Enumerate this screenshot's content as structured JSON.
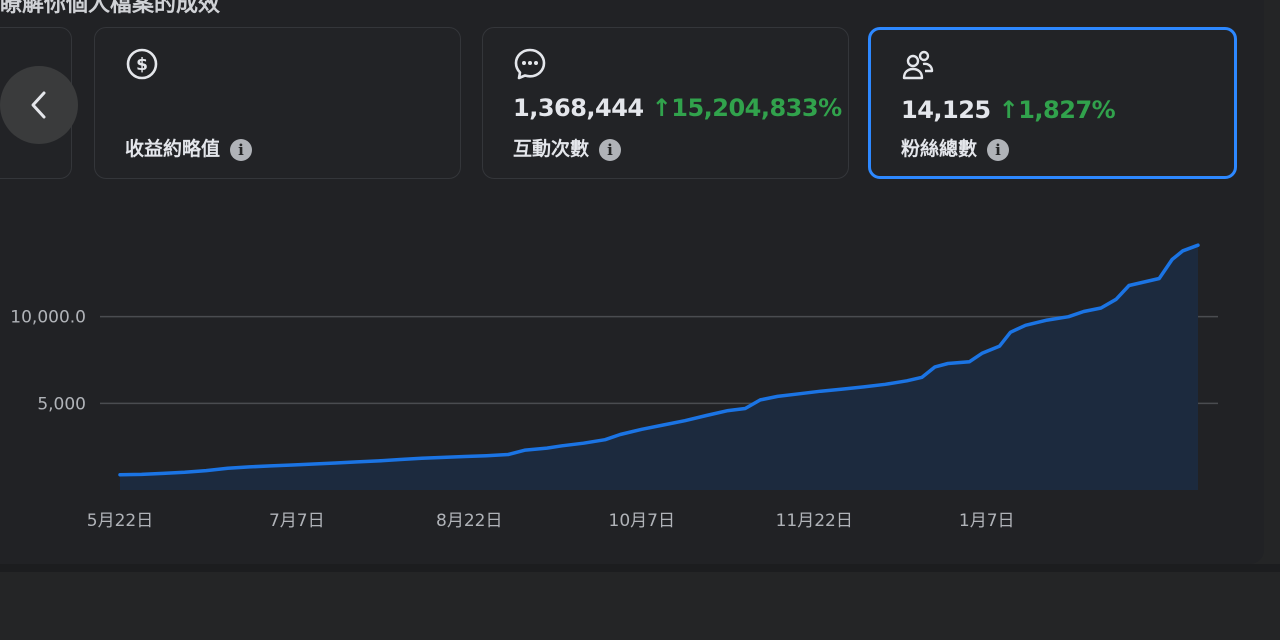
{
  "header": {
    "title": "瞭解你個人檔案的成效"
  },
  "nav": {
    "prev_icon": "chevron-left-icon"
  },
  "cards": [
    {
      "icon": "dollar-circle-icon",
      "label": "收益約略值"
    },
    {
      "icon": "chat-bubble-icon",
      "label": "互動次數",
      "value": "1,368,444",
      "delta": "↑15,204,833%"
    },
    {
      "icon": "people-icon",
      "label": "粉絲總數",
      "value": "14,125",
      "delta": "↑1,827%",
      "selected": true
    }
  ],
  "colors": {
    "accent": "#2d88ff",
    "line": "#1b74e4",
    "positive": "#31a24c",
    "area": "#1c2a3e"
  },
  "chart_data": {
    "type": "area",
    "series": [
      {
        "values": [
          [
            0,
            880
          ],
          [
            10,
            900
          ],
          [
            20,
            960
          ],
          [
            30,
            1020
          ],
          [
            40,
            1120
          ],
          [
            50,
            1250
          ],
          [
            60,
            1330
          ],
          [
            70,
            1390
          ],
          [
            80,
            1440
          ],
          [
            90,
            1500
          ],
          [
            100,
            1560
          ],
          [
            110,
            1620
          ],
          [
            120,
            1680
          ],
          [
            130,
            1760
          ],
          [
            140,
            1830
          ],
          [
            150,
            1880
          ],
          [
            160,
            1930
          ],
          [
            170,
            1980
          ],
          [
            180,
            2050
          ],
          [
            188,
            2300
          ],
          [
            198,
            2420
          ],
          [
            205,
            2550
          ],
          [
            215,
            2700
          ],
          [
            225,
            2900
          ],
          [
            232,
            3200
          ],
          [
            242,
            3500
          ],
          [
            252,
            3750
          ],
          [
            262,
            4000
          ],
          [
            272,
            4300
          ],
          [
            282,
            4580
          ],
          [
            290,
            4700
          ],
          [
            297,
            5200
          ],
          [
            305,
            5400
          ],
          [
            315,
            5550
          ],
          [
            325,
            5700
          ],
          [
            335,
            5820
          ],
          [
            345,
            5950
          ],
          [
            355,
            6100
          ],
          [
            365,
            6300
          ],
          [
            372,
            6500
          ],
          [
            378,
            7100
          ],
          [
            384,
            7300
          ],
          [
            394,
            7400
          ],
          [
            400,
            7900
          ],
          [
            408,
            8300
          ],
          [
            413,
            9100
          ],
          [
            420,
            9500
          ],
          [
            430,
            9800
          ],
          [
            440,
            10000
          ],
          [
            447,
            10300
          ],
          [
            455,
            10500
          ],
          [
            462,
            11000
          ],
          [
            468,
            11800
          ],
          [
            475,
            12000
          ],
          [
            482,
            12200
          ],
          [
            488,
            13300
          ],
          [
            493,
            13800
          ],
          [
            500,
            14125
          ]
        ]
      }
    ],
    "x_ticks": [
      {
        "x": 0,
        "label": "5月22日"
      },
      {
        "x": 82,
        "label": "7月7日"
      },
      {
        "x": 162,
        "label": "8月22日"
      },
      {
        "x": 242,
        "label": "10月7日"
      },
      {
        "x": 322,
        "label": "11月22日"
      },
      {
        "x": 402,
        "label": "1月7日"
      }
    ],
    "y_ticks": [
      {
        "y": 5000,
        "label": "5,000"
      },
      {
        "y": 10000,
        "label": "10,000.0"
      }
    ],
    "xlim": [
      0,
      500
    ],
    "ylim": [
      0,
      15000
    ],
    "grid": true
  }
}
